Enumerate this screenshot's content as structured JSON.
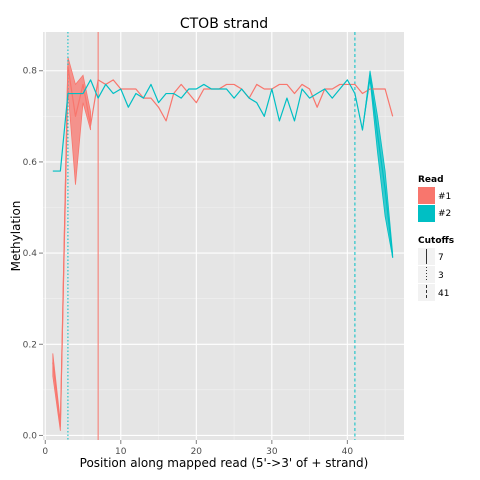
{
  "chart_data": {
    "type": "line",
    "title": "CTOB strand",
    "xlabel": "Position along mapped read (5'->3' of + strand)",
    "ylabel": "Methylation",
    "xlim": [
      -0.3,
      47.5
    ],
    "ylim": [
      -0.01,
      0.885
    ],
    "x_ticks": [
      0,
      10,
      20,
      30,
      40
    ],
    "y_ticks": [
      0.0,
      0.2,
      0.4,
      0.6,
      0.8
    ],
    "x_tick_labels": [
      "0",
      "10",
      "20",
      "30",
      "40"
    ],
    "y_tick_labels": [
      "0.0",
      "0.2",
      "0.4",
      "0.6",
      "0.8"
    ],
    "grid": true,
    "legend_placement": "right",
    "colors": {
      "#1": "#F8766D",
      "#2": "#00BFC4"
    },
    "series": [
      {
        "name": "#1",
        "x": [
          1,
          2,
          3,
          4,
          5,
          6,
          7,
          8,
          9,
          10,
          11,
          12,
          13,
          14,
          15,
          16,
          17,
          18,
          19,
          20,
          21,
          22,
          23,
          24,
          25,
          26,
          27,
          28,
          29,
          30,
          31,
          32,
          33,
          34,
          35,
          36,
          37,
          38,
          39,
          40,
          41,
          42,
          43,
          44,
          45,
          46
        ],
        "values": [
          0.16,
          0.02,
          0.81,
          0.7,
          0.77,
          0.68,
          0.78,
          0.77,
          0.78,
          0.76,
          0.76,
          0.76,
          0.74,
          0.74,
          0.72,
          0.69,
          0.75,
          0.77,
          0.75,
          0.73,
          0.76,
          0.76,
          0.76,
          0.77,
          0.77,
          0.76,
          0.74,
          0.77,
          0.76,
          0.76,
          0.77,
          0.77,
          0.75,
          0.77,
          0.76,
          0.72,
          0.76,
          0.76,
          0.77,
          0.77,
          0.77,
          0.75,
          0.76,
          0.76,
          0.76,
          0.7
        ],
        "band": [
          [
            1,
            0.13,
            0.18
          ],
          [
            2,
            0.01,
            0.03
          ],
          [
            3,
            0.76,
            0.83
          ],
          [
            4,
            0.55,
            0.77
          ],
          [
            5,
            0.73,
            0.79
          ],
          [
            6,
            0.67,
            0.71
          ]
        ]
      },
      {
        "name": "#2",
        "x": [
          1,
          2,
          3,
          4,
          5,
          6,
          7,
          8,
          9,
          10,
          11,
          12,
          13,
          14,
          15,
          16,
          17,
          18,
          19,
          20,
          21,
          22,
          23,
          24,
          25,
          26,
          27,
          28,
          29,
          30,
          31,
          32,
          33,
          34,
          35,
          36,
          37,
          38,
          39,
          40,
          41,
          42,
          43,
          44,
          45,
          46
        ],
        "values": [
          0.58,
          0.58,
          0.75,
          0.75,
          0.75,
          0.78,
          0.74,
          0.77,
          0.75,
          0.76,
          0.72,
          0.75,
          0.74,
          0.77,
          0.73,
          0.75,
          0.75,
          0.74,
          0.76,
          0.76,
          0.77,
          0.76,
          0.76,
          0.76,
          0.74,
          0.76,
          0.74,
          0.73,
          0.7,
          0.76,
          0.69,
          0.74,
          0.69,
          0.76,
          0.74,
          0.75,
          0.76,
          0.74,
          0.76,
          0.78,
          0.75,
          0.67,
          0.79,
          0.66,
          0.54,
          0.39
        ],
        "band": [
          [
            42,
            0.67,
            0.67
          ],
          [
            43,
            0.78,
            0.8
          ],
          [
            44,
            0.62,
            0.7
          ],
          [
            45,
            0.48,
            0.58
          ],
          [
            46,
            0.39,
            0.4
          ]
        ]
      }
    ],
    "cutoffs": [
      {
        "name": "7",
        "x": 7,
        "color": "#F8766D",
        "linetype": "solid"
      },
      {
        "name": "3",
        "x": 3,
        "color": "#00BFC4",
        "linetype": "dotted"
      },
      {
        "name": "41",
        "x": 41,
        "color": "#00BFC4",
        "linetype": "dashed"
      }
    ],
    "legend": {
      "read_title": "Read",
      "read_entries": [
        "#1",
        "#2"
      ],
      "cutoffs_title": "Cutoffs",
      "cutoff_entries": [
        "7",
        "3",
        "41"
      ]
    }
  }
}
